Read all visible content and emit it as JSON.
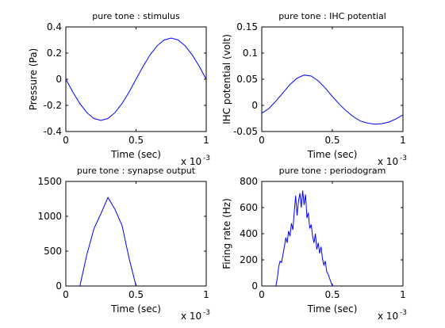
{
  "chart_data": [
    {
      "type": "line",
      "title": "pure tone : stimulus",
      "xlabel": "Time (sec)",
      "ylabel": "Pressure (Pa)",
      "x_exponent_label": "x 10",
      "x_exponent_value": "-3",
      "xlim": [
        0,
        1
      ],
      "ylim": [
        -0.4,
        0.4
      ],
      "x_ticks": [
        0,
        0.5,
        1
      ],
      "x_tick_labels": [
        "0",
        "0.5",
        "1"
      ],
      "y_ticks": [
        -0.4,
        -0.2,
        0,
        0.2,
        0.4
      ],
      "y_tick_labels": [
        "-0.4",
        "-0.2",
        "0",
        "0.2",
        "0.4"
      ],
      "grid": false,
      "series": [
        {
          "color": "#0000ff",
          "x": [
            0,
            0.05,
            0.1,
            0.15,
            0.2,
            0.25,
            0.3,
            0.35,
            0.4,
            0.45,
            0.5,
            0.55,
            0.6,
            0.65,
            0.7,
            0.75,
            0.8,
            0.85,
            0.9,
            0.95,
            1.0
          ],
          "y": [
            0,
            -0.098,
            -0.186,
            -0.256,
            -0.3,
            -0.315,
            -0.3,
            -0.256,
            -0.186,
            -0.098,
            0,
            0.098,
            0.186,
            0.256,
            0.3,
            0.315,
            0.3,
            0.256,
            0.186,
            0.098,
            0
          ]
        }
      ]
    },
    {
      "type": "line",
      "title": "pure tone : IHC potential",
      "xlabel": "Time (sec)",
      "ylabel": "IHC potential (volt)",
      "x_exponent_label": "x 10",
      "x_exponent_value": "-3",
      "xlim": [
        0,
        1
      ],
      "ylim": [
        -0.05,
        0.15
      ],
      "x_ticks": [
        0,
        0.5,
        1
      ],
      "x_tick_labels": [
        "0",
        "0.5",
        "1"
      ],
      "y_ticks": [
        -0.05,
        0,
        0.05,
        0.1,
        0.15
      ],
      "y_tick_labels": [
        "-0.05",
        "0",
        "0.05",
        "0.1",
        "0.15"
      ],
      "grid": false,
      "series": [
        {
          "color": "#0000ff",
          "x": [
            0,
            0.05,
            0.1,
            0.15,
            0.2,
            0.25,
            0.3,
            0.35,
            0.4,
            0.45,
            0.5,
            0.55,
            0.6,
            0.65,
            0.7,
            0.75,
            0.8,
            0.85,
            0.9,
            0.95,
            1.0
          ],
          "y": [
            -0.015,
            -0.006,
            0.008,
            0.024,
            0.04,
            0.052,
            0.058,
            0.056,
            0.047,
            0.033,
            0.017,
            0.002,
            -0.011,
            -0.022,
            -0.03,
            -0.034,
            -0.036,
            -0.035,
            -0.032,
            -0.026,
            -0.018
          ]
        }
      ]
    },
    {
      "type": "line",
      "title": "pure tone : synapse output",
      "xlabel": "Time (sec)",
      "ylabel": "",
      "x_exponent_label": "x 10",
      "x_exponent_value": "-3",
      "xlim": [
        0,
        1
      ],
      "ylim": [
        0,
        1500
      ],
      "x_ticks": [
        0,
        0.5,
        1
      ],
      "x_tick_labels": [
        "0",
        "0.5",
        "1"
      ],
      "y_ticks": [
        0,
        500,
        1000,
        1500
      ],
      "y_tick_labels": [
        "0",
        "500",
        "1000",
        "1500"
      ],
      "grid": false,
      "series": [
        {
          "color": "#0000ff",
          "x": [
            0.1,
            0.15,
            0.2,
            0.25,
            0.3,
            0.35,
            0.4,
            0.45,
            0.5
          ],
          "y": [
            0,
            450,
            820,
            1040,
            1270,
            1100,
            870,
            400,
            0
          ]
        }
      ]
    },
    {
      "type": "line",
      "title": "pure tone : periodogram",
      "xlabel": "Time (sec)",
      "ylabel": "Firing rate (Hz)",
      "x_exponent_label": "x 10",
      "x_exponent_value": "-3",
      "xlim": [
        0,
        1
      ],
      "ylim": [
        0,
        800
      ],
      "x_ticks": [
        0,
        0.5,
        1
      ],
      "x_tick_labels": [
        "0",
        "0.5",
        "1"
      ],
      "y_ticks": [
        0,
        200,
        400,
        600,
        800
      ],
      "y_tick_labels": [
        "0",
        "200",
        "400",
        "600",
        "800"
      ],
      "grid": false,
      "series": [
        {
          "color": "#0000ff",
          "x": [
            0.1,
            0.11,
            0.12,
            0.13,
            0.14,
            0.15,
            0.16,
            0.17,
            0.18,
            0.19,
            0.2,
            0.21,
            0.22,
            0.23,
            0.24,
            0.25,
            0.26,
            0.27,
            0.28,
            0.29,
            0.3,
            0.31,
            0.32,
            0.33,
            0.34,
            0.35,
            0.36,
            0.37,
            0.38,
            0.39,
            0.4,
            0.41,
            0.42,
            0.43,
            0.44,
            0.45,
            0.46,
            0.47,
            0.48,
            0.49,
            0.5
          ],
          "y": [
            0,
            60,
            150,
            190,
            180,
            240,
            300,
            370,
            330,
            420,
            380,
            480,
            430,
            560,
            690,
            540,
            650,
            710,
            600,
            730,
            620,
            700,
            520,
            560,
            440,
            470,
            380,
            330,
            400,
            280,
            330,
            250,
            300,
            210,
            160,
            190,
            110,
            90,
            60,
            30,
            0
          ]
        }
      ]
    }
  ]
}
